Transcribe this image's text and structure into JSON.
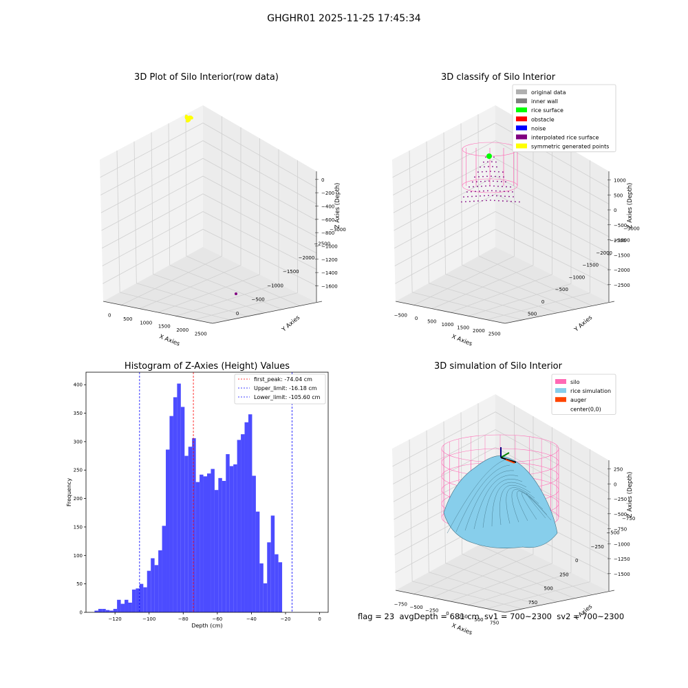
{
  "figure_title": "GHGHR01 2025-11-25 17:45:34",
  "footer_text": "flag = 23  avgDepth = 681 cm  sv1 = 700~2300  sv2 = 700~2300",
  "colors": {
    "histogram_bar": "#4c4cff",
    "first_peak_line": "#ff0000",
    "limit_lines": "#0000ff",
    "silo": "#ff69b4",
    "rice_simulation": "#87ceeb",
    "auger": "#ff4500",
    "raw_points": "#ffff00",
    "interpolated": "#800080",
    "rice_surface": "#00ff00"
  },
  "chart_data": [
    {
      "type": "scatter3d",
      "title": "3D Plot of Silo Interior(row data)",
      "xlabel": "X Axies",
      "ylabel": "Y Axies",
      "zlabel": "Z Axies (Depth)",
      "x_ticks": [
        "0",
        "500",
        "1000",
        "1500",
        "2000",
        "2500"
      ],
      "y_ticks": [
        "0",
        "−500",
        "−1000",
        "−1500",
        "−2000",
        "−2500",
        "−3000"
      ],
      "z_ticks": [
        "0",
        "−200",
        "−400",
        "−600",
        "−800",
        "−1000",
        "−1200",
        "−1400",
        "−1600"
      ],
      "grid": true
    },
    {
      "type": "scatter3d",
      "title": "3D classify of Silo Interior",
      "xlabel": "X Axies",
      "ylabel": "Y Axies",
      "zlabel": "Z Axies (Depth)",
      "x_ticks": [
        "−500",
        "0",
        "500",
        "1000",
        "1500",
        "2000",
        "2500"
      ],
      "y_ticks": [
        "500",
        "0",
        "−500",
        "−1000",
        "−1500",
        "−2000",
        "−2500",
        "−3000"
      ],
      "z_ticks": [
        "1000",
        "500",
        "0",
        "−500",
        "−1000",
        "−1500",
        "−2000",
        "−2500"
      ],
      "legend_position": "top-right",
      "legend": [
        {
          "label": "original data",
          "color": "#b0b0b0"
        },
        {
          "label": "inner wall",
          "color": "#808080"
        },
        {
          "label": "rice surface",
          "color": "#00ff00"
        },
        {
          "label": "obstacle",
          "color": "#ff0000"
        },
        {
          "label": "noise",
          "color": "#0000ff"
        },
        {
          "label": "interpolated rice surface",
          "color": "#800080"
        },
        {
          "label": "symmetric generated points",
          "color": "#ffff00"
        }
      ],
      "grid": true
    },
    {
      "type": "bar",
      "title": "Histogram of Z-Axies (Height) Values",
      "xlabel": "Depth (cm)",
      "ylabel": "Frequency",
      "xlim": [
        -137,
        5
      ],
      "ylim": [
        0,
        422
      ],
      "x_ticks": [
        -120,
        -100,
        -80,
        -60,
        -40,
        -20,
        0
      ],
      "y_ticks": [
        0,
        50,
        100,
        150,
        200,
        250,
        300,
        350,
        400
      ],
      "bin_start": -132,
      "bin_width": 2.2,
      "values": [
        3,
        6,
        6,
        4,
        3,
        6,
        22,
        15,
        22,
        17,
        40,
        42,
        50,
        44,
        73,
        95,
        83,
        109,
        152,
        286,
        345,
        378,
        402,
        361,
        275,
        291,
        306,
        229,
        242,
        239,
        244,
        252,
        215,
        236,
        231,
        278,
        257,
        260,
        303,
        313,
        334,
        348,
        240,
        177,
        86,
        51,
        123,
        170,
        102,
        88
      ],
      "vlines": [
        {
          "label": "first_peak: -74.04 cm",
          "x": -74.04,
          "color": "#ff0000"
        },
        {
          "label": "Upper_limit: -16.18 cm",
          "x": -16.18,
          "color": "#0000ff"
        },
        {
          "label": "Lower_limit: -105.60 cm",
          "x": -105.6,
          "color": "#0000ff"
        }
      ],
      "legend_position": "top-right",
      "grid": false
    },
    {
      "type": "surface3d",
      "title": "3D simulation of Silo Interior",
      "xlabel": "X Axies",
      "ylabel": "Y Axies",
      "zlabel": "Z Axies (Depth)",
      "x_ticks": [
        "−750",
        "−500",
        "−250",
        "0",
        "250",
        "500",
        "750"
      ],
      "y_ticks": [
        "750",
        "500",
        "250",
        "0",
        "−250",
        "−500",
        "−750"
      ],
      "z_ticks": [
        "250",
        "0",
        "−250",
        "−500",
        "−750",
        "−1000",
        "−1250",
        "−1500"
      ],
      "legend_position": "top-right",
      "legend": [
        {
          "label": "silo",
          "color": "#ff69b4"
        },
        {
          "label": "rice simulation",
          "color": "#87ceeb"
        },
        {
          "label": "auger",
          "color": "#ff4500"
        },
        {
          "label": "center(0,0)",
          "color": ""
        }
      ],
      "grid": true
    }
  ]
}
